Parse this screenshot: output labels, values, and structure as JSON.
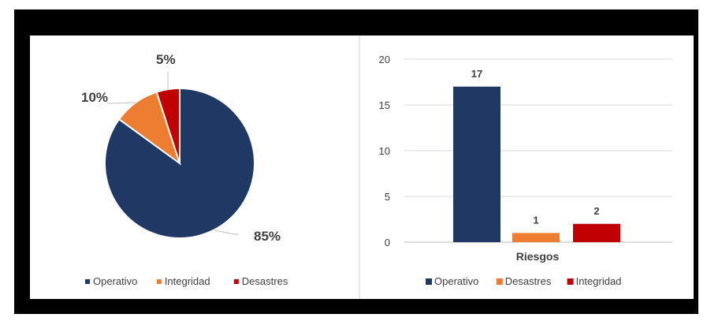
{
  "chart_data": [
    {
      "type": "pie",
      "categories": [
        "Operativo",
        "Integridad",
        "Desastres"
      ],
      "values": [
        85,
        10,
        5
      ],
      "data_labels": [
        "85%",
        "10%",
        "5%"
      ],
      "colors": [
        "#203864",
        "#ED7D31",
        "#C00000"
      ],
      "legend": [
        "Operativo",
        "Integridad",
        "Desastres"
      ],
      "legend_position": "bottom"
    },
    {
      "type": "bar",
      "xlabel": "Riesgos",
      "series": [
        {
          "name": "Operativo",
          "values": [
            17
          ],
          "color": "#203864"
        },
        {
          "name": "Desastres",
          "values": [
            1
          ],
          "color": "#ED7D31"
        },
        {
          "name": "Integridad",
          "values": [
            2
          ],
          "color": "#C00000"
        }
      ],
      "ylim": [
        0,
        20
      ],
      "yticks": [
        "0",
        "5",
        "10",
        "15",
        "20"
      ],
      "grid": true,
      "legend_position": "bottom"
    }
  ]
}
